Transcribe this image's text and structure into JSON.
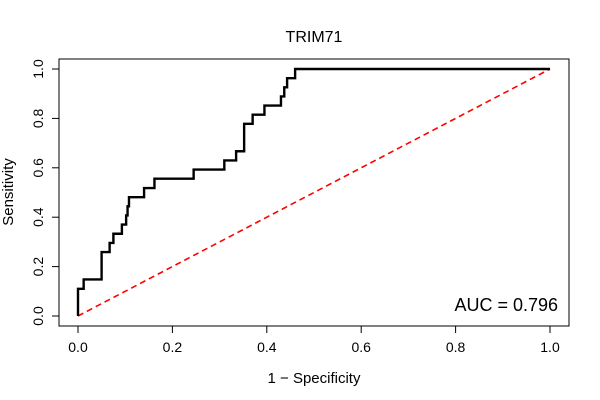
{
  "chart_data": {
    "type": "line",
    "title": "TRIM71",
    "xlabel": "1 − Specificity",
    "ylabel": "Sensitivity",
    "xlim": [
      0,
      1
    ],
    "ylim": [
      0,
      1
    ],
    "x_ticks": [
      "0.0",
      "0.2",
      "0.4",
      "0.6",
      "0.8",
      "1.0"
    ],
    "y_ticks": [
      "0.0",
      "0.2",
      "0.4",
      "0.6",
      "0.8",
      "1.0"
    ],
    "grid": false,
    "legend": "none",
    "annotation": "AUC = 0.796",
    "colors": {
      "roc": "#000000",
      "reference": "#ff0000"
    },
    "series": [
      {
        "x": [
          0.0,
          0.0,
          0.005,
          0.005,
          0.012,
          0.012,
          0.05,
          0.05,
          0.067,
          0.067,
          0.075,
          0.075,
          0.093,
          0.093,
          0.102,
          0.102,
          0.105,
          0.105,
          0.108,
          0.108,
          0.14,
          0.14,
          0.162,
          0.162,
          0.245,
          0.245,
          0.31,
          0.31,
          0.335,
          0.335,
          0.352,
          0.352,
          0.37,
          0.37,
          0.395,
          0.395,
          0.43,
          0.43,
          0.437,
          0.437,
          0.44,
          0.44,
          0.443,
          0.443,
          0.46,
          0.46,
          1.0
        ],
        "y": [
          0.0,
          0.11,
          0.11,
          0.11,
          0.11,
          0.148,
          0.148,
          0.259,
          0.259,
          0.296,
          0.296,
          0.333,
          0.333,
          0.37,
          0.37,
          0.407,
          0.407,
          0.444,
          0.444,
          0.481,
          0.481,
          0.518,
          0.518,
          0.556,
          0.556,
          0.593,
          0.593,
          0.63,
          0.63,
          0.667,
          0.667,
          0.778,
          0.778,
          0.815,
          0.815,
          0.852,
          0.852,
          0.889,
          0.889,
          0.926,
          0.926,
          0.926,
          0.926,
          0.963,
          0.963,
          1.0,
          1.0
        ]
      },
      {
        "x": [
          0,
          1
        ],
        "y": [
          0,
          1
        ],
        "style": "dashed"
      }
    ]
  }
}
